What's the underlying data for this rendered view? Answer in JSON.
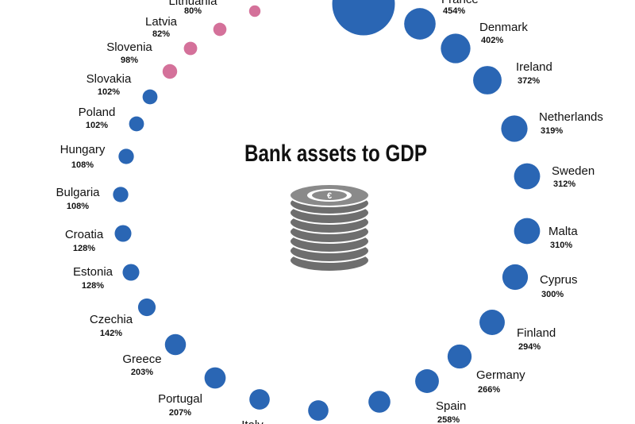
{
  "chart_data": {
    "type": "bubble-ring",
    "title": "Bank assets to GDP",
    "categories": [
      null,
      "Lithuania",
      "Latvia",
      "Slovenia",
      "Slovakia",
      "Poland",
      "Hungary",
      "Bulgaria",
      "Croatia",
      "Estonia",
      "Czechia",
      "Greece",
      "Portugal",
      "Italy",
      null,
      null,
      "Spain",
      "Germany",
      "Finland",
      "Cyprus",
      "Malta",
      "Sweden",
      "Netherlands",
      "Ireland",
      "Denmark",
      "France",
      null
    ],
    "values": [
      60,
      80,
      82,
      98,
      102,
      102,
      108,
      108,
      128,
      128,
      142,
      203,
      207,
      190,
      190,
      220,
      258,
      266,
      294,
      300,
      310,
      312,
      319,
      372,
      402,
      454,
      1800
    ],
    "value_labels": [
      null,
      "80%",
      "82%",
      "98%",
      "102%",
      "102%",
      "108%",
      "108%",
      "128%",
      "128%",
      "142%",
      "203%",
      "207%",
      null,
      null,
      null,
      "258%",
      "266%",
      "294%",
      "300%",
      "310%",
      "312%",
      "319%",
      "372%",
      "402%",
      "454%",
      null
    ],
    "colors": [
      "#d4719a",
      "#d4719a",
      "#d4719a",
      "#d4719a",
      "#2a66b4",
      "#2a66b4",
      "#2a66b4",
      "#2a66b4",
      "#2a66b4",
      "#2a66b4",
      "#2a66b4",
      "#2a66b4",
      "#2a66b4",
      "#2a66b4",
      "#2a66b4",
      "#2a66b4",
      "#2a66b4",
      "#2a66b4",
      "#2a66b4",
      "#2a66b4",
      "#2a66b4",
      "#2a66b4",
      "#2a66b4",
      "#2a66b4",
      "#2a66b4",
      "#2a66b4",
      "#2a66b4"
    ]
  }
}
